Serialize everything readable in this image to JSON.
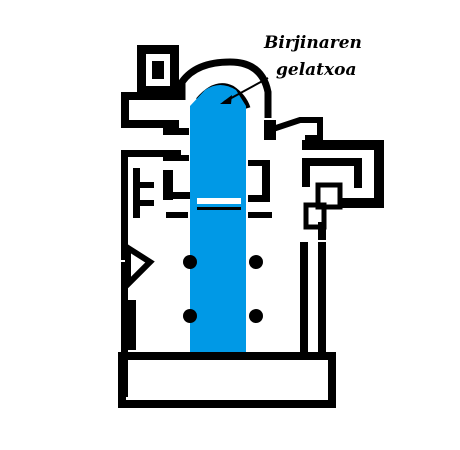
{
  "annotation": {
    "line1": "Birjinaren",
    "line2": "gelatxoa"
  },
  "colors": {
    "background": "#ffffff",
    "walls": "#000000",
    "highlight": "#0099e6"
  }
}
